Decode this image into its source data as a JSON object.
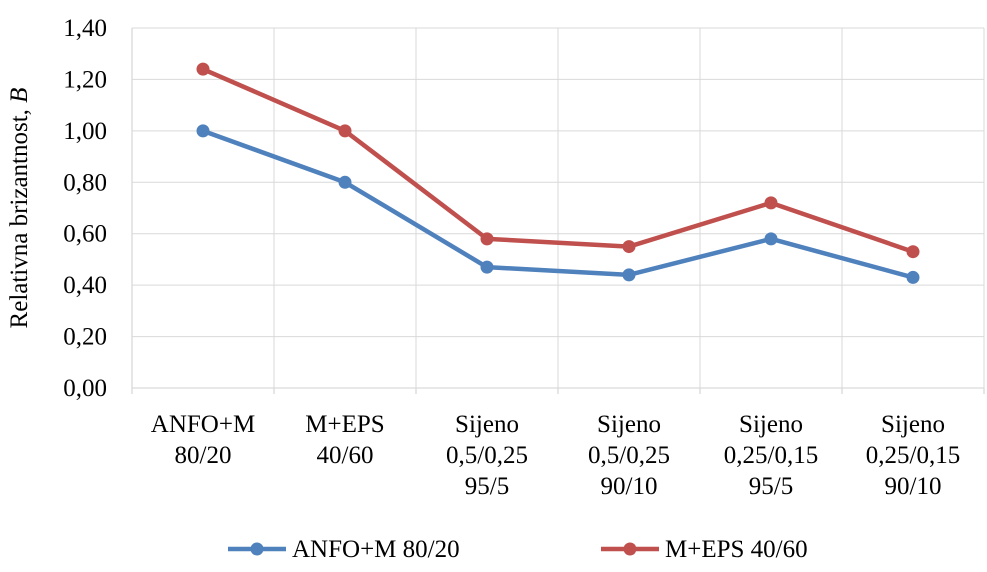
{
  "chart_data": {
    "type": "line",
    "categories": [
      [
        "ANFO+M",
        "80/20"
      ],
      [
        "M+EPS",
        "40/60"
      ],
      [
        "Sijeno",
        "0,5/0,25",
        "95/5"
      ],
      [
        "Sijeno",
        "0,5/0,25",
        "90/10"
      ],
      [
        "Sijeno",
        "0,25/0,15",
        "95/5"
      ],
      [
        "Sijeno",
        "0,25/0,15",
        "90/10"
      ]
    ],
    "series": [
      {
        "name": "ANFO+M 80/20",
        "color": "#4f81bd",
        "values": [
          1.0,
          0.8,
          0.47,
          0.44,
          0.58,
          0.43
        ]
      },
      {
        "name": "M+EPS 40/60",
        "color": "#c0504d",
        "values": [
          1.24,
          1.0,
          0.58,
          0.55,
          0.72,
          0.53
        ]
      }
    ],
    "ylabel_main": "Relativna brizantnost, ",
    "ylabel_symbol": "B",
    "ylim": [
      0,
      1.4
    ],
    "yticks": [
      "0,00",
      "0,20",
      "0,40",
      "0,60",
      "0,80",
      "1,00",
      "1,20",
      "1,40"
    ],
    "grid": true,
    "legend_position": "bottom"
  }
}
